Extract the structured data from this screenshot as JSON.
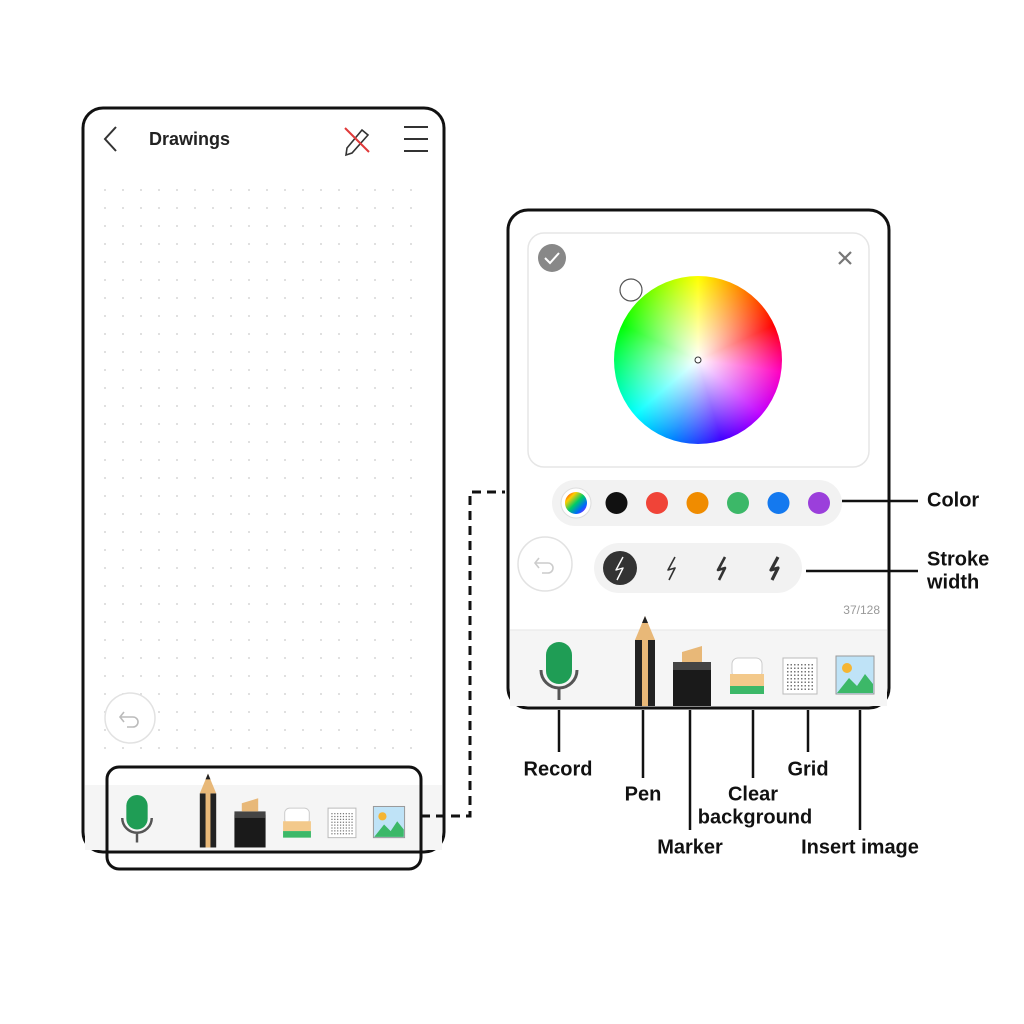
{
  "screen": {
    "title": "Drawings"
  },
  "panel": {
    "counter": "37/128"
  },
  "callouts": {
    "color": "Color",
    "stroke_width": [
      "Stroke",
      "width"
    ],
    "record": "Record",
    "pen": "Pen",
    "marker": "Marker",
    "clear_background": [
      "Clear",
      "background"
    ],
    "grid": "Grid",
    "insert_image": "Insert image"
  }
}
